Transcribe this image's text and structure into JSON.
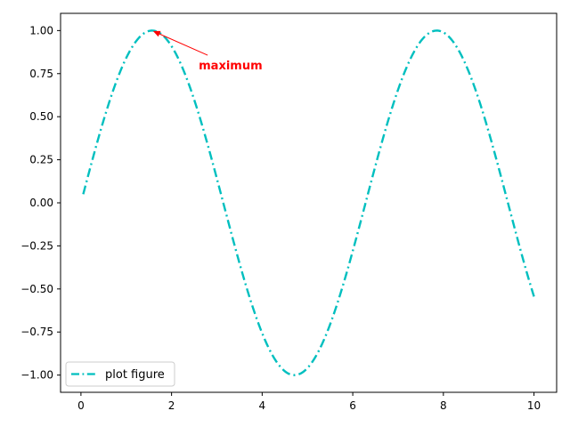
{
  "chart_data": {
    "type": "line",
    "function": "sin(x)",
    "x_start": 0.05,
    "x_end": 10,
    "xlim": [
      -0.45,
      10.5
    ],
    "ylim": [
      -1.1,
      1.1
    ],
    "xticks": [
      0,
      2,
      4,
      6,
      8,
      10
    ],
    "xtick_labels": [
      "0",
      "2",
      "4",
      "6",
      "8",
      "10"
    ],
    "yticks": [
      -1.0,
      -0.75,
      -0.5,
      -0.25,
      0.0,
      0.25,
      0.5,
      0.75,
      1.0
    ],
    "ytick_labels": [
      "−1.00",
      "−0.75",
      "−0.50",
      "−0.25",
      "0.00",
      "0.25",
      "0.50",
      "0.75",
      "1.00"
    ],
    "series": [
      {
        "name": "plot figure",
        "color": "#00bfbf",
        "linestyle": "dashdot"
      }
    ],
    "annotation": {
      "text": "maximum",
      "color": "#ff0000",
      "point": [
        1.571,
        1.0
      ],
      "text_pos": [
        2.6,
        0.8
      ]
    },
    "legend_location": "lower left",
    "grid": false,
    "title": "",
    "xlabel": "",
    "ylabel": ""
  }
}
